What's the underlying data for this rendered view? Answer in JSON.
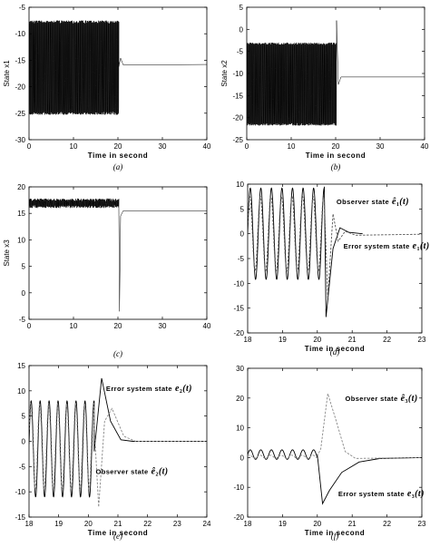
{
  "chart_data": [
    {
      "id": "a",
      "type": "line",
      "caption": "(a)",
      "xlabel": "Time in second",
      "ylabel": "State x1",
      "xlim": [
        0,
        40
      ],
      "ylim": [
        -30,
        -5
      ],
      "xticks": [
        "0",
        "10",
        "20",
        "30",
        "40"
      ],
      "yticks": [
        "-30",
        "-25",
        "-20",
        "-15",
        "-10",
        "-5"
      ],
      "series": [
        {
          "style": "solid",
          "color": "#000000",
          "oscillation": {
            "t_start": 0,
            "t_end": 20.2,
            "low": -25.3,
            "high": -7.5,
            "mean": -17.7
          },
          "steady": [
            [
              20.2,
              -16.2
            ],
            [
              20.6,
              -14.6
            ],
            [
              21.2,
              -15.9
            ],
            [
              40,
              -15.8
            ]
          ]
        }
      ],
      "annotations": []
    },
    {
      "id": "b",
      "type": "line",
      "caption": "(b)",
      "xlabel": "Time in second",
      "ylabel": "State x2",
      "xlim": [
        0,
        40
      ],
      "ylim": [
        -25,
        5
      ],
      "xticks": [
        "0",
        "10",
        "20",
        "30",
        "40"
      ],
      "yticks": [
        "-25",
        "-20",
        "-15",
        "-10",
        "-5",
        "0",
        "5"
      ],
      "series": [
        {
          "style": "solid",
          "color": "#000000",
          "oscillation": {
            "t_start": 0,
            "t_end": 20.2,
            "low": -21.8,
            "high": -3.0,
            "mean": -12.8
          },
          "steady": [
            [
              20.2,
              2.0
            ],
            [
              20.6,
              -12.5
            ],
            [
              21.2,
              -10.8
            ],
            [
              40,
              -10.8
            ]
          ]
        }
      ],
      "annotations": []
    },
    {
      "id": "c",
      "type": "line",
      "caption": "(c)",
      "xlabel": "",
      "ylabel": "State x3",
      "xlim": [
        0,
        40
      ],
      "ylim": [
        -5,
        20
      ],
      "xticks": [
        "0",
        "10",
        "20",
        "30",
        "40"
      ],
      "yticks": [
        "-5",
        "0",
        "5",
        "10",
        "15",
        "20"
      ],
      "series": [
        {
          "style": "solid",
          "color": "#000000",
          "oscillation": {
            "t_start": 0,
            "t_end": 20.2,
            "low": 16.0,
            "high": 17.8,
            "mean": 17.0
          },
          "steady": [
            [
              20.2,
              16.2
            ],
            [
              20.35,
              -3.5
            ],
            [
              20.6,
              14.5
            ],
            [
              21.2,
              15.5
            ],
            [
              40,
              15.5
            ]
          ]
        }
      ],
      "annotations": []
    },
    {
      "id": "d",
      "type": "line",
      "caption": "(d)",
      "xlabel": "Time in second",
      "ylabel": "",
      "xlim": [
        18,
        23
      ],
      "ylim": [
        -20,
        10
      ],
      "xticks": [
        "18",
        "19",
        "20",
        "21",
        "22",
        "23"
      ],
      "yticks": [
        "-20",
        "-15",
        "-10",
        "-5",
        "0",
        "5",
        "10"
      ],
      "series": [
        {
          "style": "solid",
          "color": "#000000",
          "sine": {
            "t_start": 18,
            "t_end": 20.2,
            "amplitude": 9.2,
            "freq": 3.3,
            "offset": 0,
            "phase": 0
          },
          "tail": [
            [
              20.2,
              9.5
            ],
            [
              20.25,
              -16.8
            ],
            [
              20.45,
              -3.0
            ],
            [
              20.65,
              1.2
            ],
            [
              20.9,
              0.3
            ],
            [
              21.3,
              0.0
            ]
          ]
        },
        {
          "style": "dashed",
          "color": "#555555",
          "sine": {
            "t_start": 18,
            "t_end": 20.2,
            "amplitude": 7.5,
            "freq": 3.3,
            "offset": 0,
            "phase": 0.3
          },
          "tail": [
            [
              20.2,
              7.0
            ],
            [
              20.3,
              -13.0
            ],
            [
              20.45,
              4.0
            ],
            [
              20.6,
              -1.5
            ],
            [
              20.8,
              0.5
            ],
            [
              21.1,
              -0.3
            ],
            [
              23,
              -0.1
            ]
          ]
        }
      ],
      "annotations": [
        {
          "text": "Observer state",
          "sym": "ê",
          "sub": "1",
          "arg": "(t)",
          "x": 20.55,
          "y": 6.0
        },
        {
          "text": "Error system state",
          "sym": "e",
          "sub": "1",
          "arg": "(t)",
          "x": 20.75,
          "y": -3.0
        }
      ]
    },
    {
      "id": "e",
      "type": "line",
      "caption": "(e)",
      "xlabel": "Time in second",
      "ylabel": "",
      "xlim": [
        18,
        24
      ],
      "ylim": [
        -15,
        15
      ],
      "xticks": [
        "18",
        "19",
        "20",
        "21",
        "22",
        "23",
        "24"
      ],
      "yticks": [
        "-15",
        "-10",
        "-5",
        "0",
        "5",
        "10",
        "15"
      ],
      "series": [
        {
          "style": "solid",
          "color": "#000000",
          "sine": {
            "t_start": 18,
            "t_end": 20.2,
            "amplitude": 9.5,
            "freq": 3.3,
            "offset": -1.5,
            "phase": 0.1
          },
          "tail": [
            [
              20.2,
              -2.0
            ],
            [
              20.45,
              12.5
            ],
            [
              20.75,
              4.0
            ],
            [
              21.1,
              0.3
            ],
            [
              21.5,
              0.0
            ],
            [
              24,
              0.0
            ]
          ]
        },
        {
          "style": "dashed",
          "color": "#888888",
          "sine": {
            "t_start": 18,
            "t_end": 20.2,
            "amplitude": 8.5,
            "freq": 3.3,
            "offset": -1.0,
            "phase": 0.4
          },
          "tail": [
            [
              20.2,
              3.0
            ],
            [
              20.35,
              -13.0
            ],
            [
              20.55,
              4.0
            ],
            [
              20.8,
              6.5
            ],
            [
              21.2,
              1.0
            ],
            [
              21.6,
              0.0
            ],
            [
              24,
              0.0
            ]
          ]
        }
      ],
      "annotations": [
        {
          "text": "Error system state",
          "sym": "e",
          "sub": "2",
          "arg": "(t)",
          "x": 20.6,
          "y": 10.0
        },
        {
          "text": "Observer state",
          "sym": "ê",
          "sub": "2",
          "arg": "(t)",
          "x": 20.25,
          "y": -6.5
        }
      ]
    },
    {
      "id": "f",
      "type": "line",
      "caption": "(f)",
      "xlabel": "Time in second",
      "ylabel": "",
      "xlim": [
        18,
        23
      ],
      "ylim": [
        -20,
        30
      ],
      "xticks": [
        "18",
        "19",
        "20",
        "21",
        "22",
        "23"
      ],
      "yticks": [
        "-20",
        "-10",
        "0",
        "10",
        "20",
        "30"
      ],
      "series": [
        {
          "style": "solid",
          "color": "#000000",
          "sine": {
            "t_start": 18,
            "t_end": 20.0,
            "amplitude": 1.6,
            "freq": 3.3,
            "offset": 1.0,
            "phase": 0
          },
          "tail": [
            [
              20.0,
              1.0
            ],
            [
              20.15,
              -15.5
            ],
            [
              20.35,
              -11.0
            ],
            [
              20.7,
              -5.0
            ],
            [
              21.2,
              -1.5
            ],
            [
              21.8,
              -0.3
            ],
            [
              23,
              0.0
            ]
          ]
        },
        {
          "style": "dashed",
          "color": "#888888",
          "sine": {
            "t_start": 18,
            "t_end": 20.0,
            "amplitude": 0.5,
            "freq": 3.3,
            "offset": 0.3,
            "phase": 0.5
          },
          "tail": [
            [
              20.0,
              0.5
            ],
            [
              20.1,
              3.0
            ],
            [
              20.3,
              21.5
            ],
            [
              20.55,
              12.0
            ],
            [
              20.8,
              2.0
            ],
            [
              21.1,
              -0.3
            ],
            [
              23,
              0.0
            ]
          ]
        }
      ],
      "annotations": [
        {
          "text": "Observer state",
          "sym": "ê",
          "sub": "3",
          "arg": "(t)",
          "x": 20.8,
          "y": 19.0
        },
        {
          "text": "Error system state",
          "sym": "e",
          "sub": "3",
          "arg": "(t)",
          "x": 20.6,
          "y": -13.0
        }
      ]
    }
  ]
}
